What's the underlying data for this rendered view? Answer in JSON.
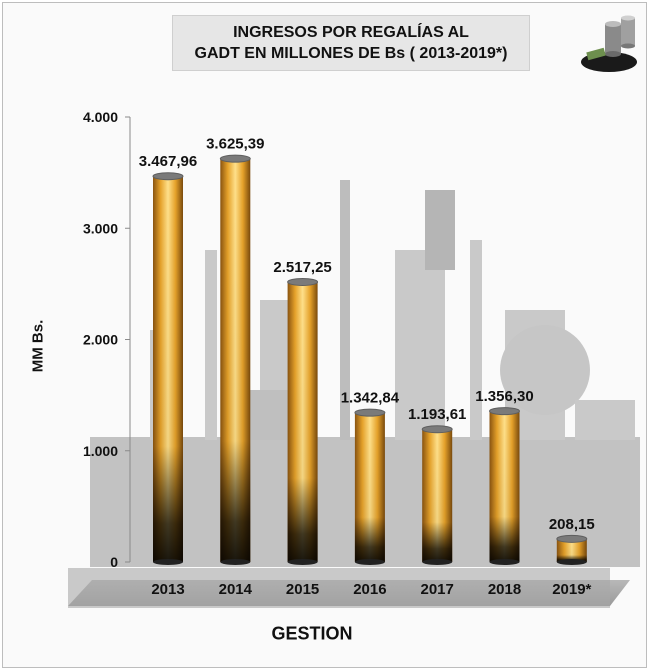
{
  "chart_data": {
    "type": "bar",
    "title_lines": [
      "INGRESOS POR REGALÍAS AL",
      "GADT EN MILLONES DE Bs ( 2013-2019*)"
    ],
    "xlabel": "GESTION",
    "ylabel": "MM Bs.",
    "categories": [
      "2013",
      "2014",
      "2015",
      "2016",
      "2017",
      "2018",
      "2019*"
    ],
    "values": [
      3467.96,
      3625.39,
      2517.25,
      1342.84,
      1193.61,
      1356.3,
      208.15
    ],
    "value_labels": [
      "3.467,96",
      "3.625,39",
      "2.517,25",
      "1.342,84",
      "1.193,61",
      "1.356,30",
      "208,15"
    ],
    "yticks": [
      0,
      1000,
      2000,
      3000,
      4000
    ],
    "ytick_labels": [
      "0",
      "1.000",
      "2.000",
      "3.000",
      "4.000"
    ],
    "ylim": [
      0,
      4000
    ],
    "grid": false,
    "legend": "none"
  },
  "colors": {
    "bar_top": "#f5c842",
    "bar_mid": "#d9901a",
    "bar_dark": "#1a1207",
    "background_building": "#c4c4c4",
    "floor": "#a8a8a8"
  },
  "icons": {
    "corner_logo": "oil-barrels-money-icon"
  }
}
